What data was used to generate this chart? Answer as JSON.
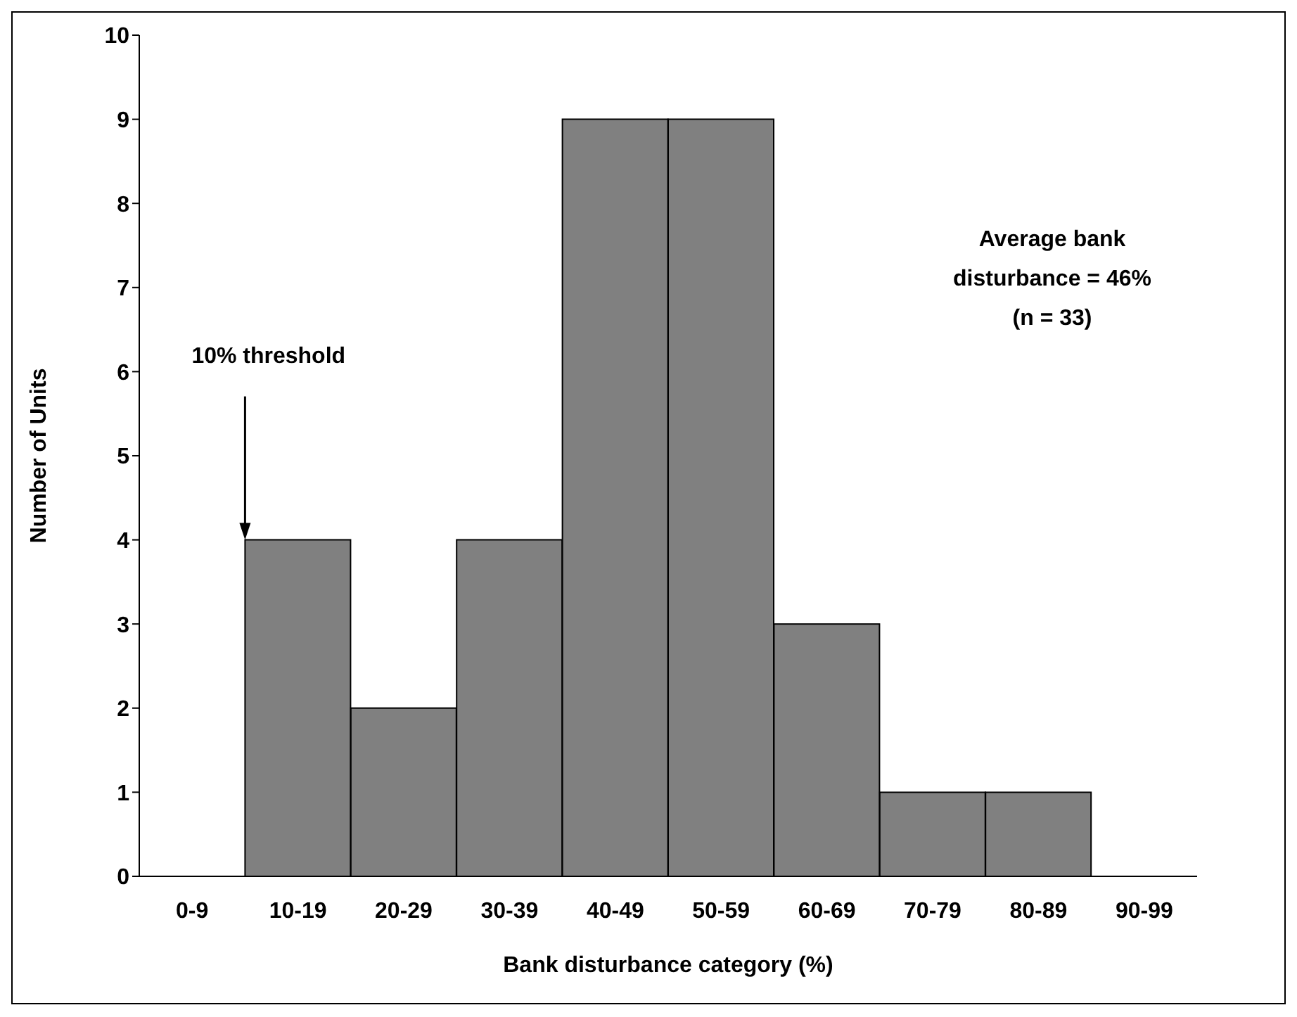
{
  "chart_data": {
    "type": "bar",
    "xlabel": "Bank disturbance category (%)",
    "ylabel": "Number of Units",
    "categories": [
      "0-9",
      "10-19",
      "20-29",
      "30-39",
      "40-49",
      "50-59",
      "60-69",
      "70-79",
      "80-89",
      "90-99"
    ],
    "values": [
      0,
      4,
      2,
      4,
      9,
      9,
      3,
      1,
      1,
      0
    ],
    "color": "#808080",
    "ylim": [
      0,
      10
    ],
    "yticks": [
      0,
      1,
      2,
      3,
      4,
      5,
      6,
      7,
      8,
      9,
      10
    ],
    "grid": false,
    "legend": false,
    "annotations": [
      "10% threshold",
      "Average bank disturbance = 46% (n = 33)"
    ]
  }
}
